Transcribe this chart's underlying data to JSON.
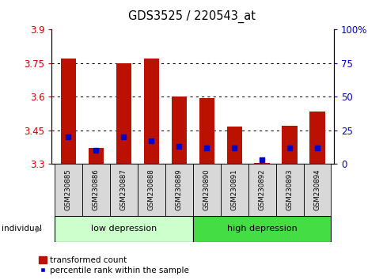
{
  "title": "GDS3525 / 220543_at",
  "samples": [
    "GSM230885",
    "GSM230886",
    "GSM230887",
    "GSM230888",
    "GSM230889",
    "GSM230890",
    "GSM230891",
    "GSM230892",
    "GSM230893",
    "GSM230894"
  ],
  "red_values": [
    3.77,
    3.37,
    3.75,
    3.77,
    3.6,
    3.595,
    3.465,
    3.305,
    3.47,
    3.535
  ],
  "blue_values": [
    20,
    10,
    20,
    17,
    13,
    12,
    12,
    3,
    12,
    12
  ],
  "ymin": 3.3,
  "ymax": 3.9,
  "y_ticks": [
    3.3,
    3.45,
    3.6,
    3.75,
    3.9
  ],
  "y2_ticks": [
    0,
    25,
    50,
    75,
    100
  ],
  "ylabel_color": "#cc0000",
  "y2label_color": "#0000cc",
  "bar_color": "#bb1100",
  "dot_color": "#0000cc",
  "low_group_color": "#ccffcc",
  "high_group_color": "#44dd44",
  "sample_box_color": "#d8d8d8",
  "grid_color": "#000000",
  "legend_items": [
    "transformed count",
    "percentile rank within the sample"
  ],
  "n_low": 5,
  "n_high": 5
}
